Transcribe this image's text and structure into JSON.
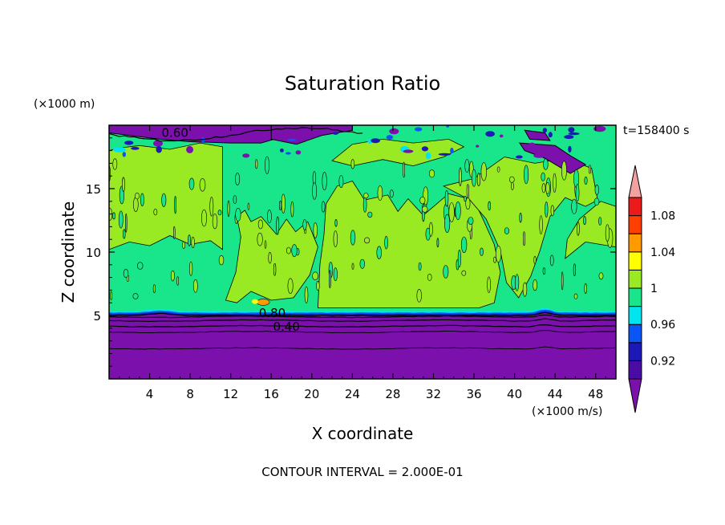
{
  "chart_data": {
    "type": "heatmap",
    "title": "Saturation Ratio",
    "xlabel": "X coordinate",
    "ylabel": "Z coordinate",
    "x_unit": "(×1000 m/s)",
    "y_unit": "(×1000 m)",
    "time_label": "t=158400 s",
    "footer": "CONTOUR INTERVAL = 2.000E-01",
    "xlim": [
      0,
      50
    ],
    "ylim": [
      0,
      20
    ],
    "x_ticks": [
      4,
      8,
      12,
      16,
      20,
      24,
      28,
      32,
      36,
      40,
      44,
      48
    ],
    "y_ticks": [
      5,
      10,
      15
    ],
    "contour_labels": [
      {
        "text": "0.60",
        "x": 6.5,
        "y": 19.4
      },
      {
        "text": "0.80",
        "x": 16.1,
        "y": 5.2
      },
      {
        "text": "0.40",
        "x": 17.5,
        "y": 4.1
      }
    ],
    "colorbar": {
      "levels": [
        0.92,
        0.94,
        0.96,
        0.98,
        1.0,
        1.02,
        1.04,
        1.06,
        1.08,
        1.1
      ],
      "labels": [
        "0.92",
        "0.96",
        "1",
        "1.04",
        "1.08"
      ],
      "label_values": [
        0.92,
        0.96,
        1.0,
        1.04,
        1.08
      ],
      "colors": [
        "#4b0ca6",
        "#1c19b8",
        "#0a55f5",
        "#00e5f0",
        "#19e68a",
        "#9aea23",
        "#ffff00",
        "#ff9900",
        "#ff3f00",
        "#ec1a1a"
      ],
      "under_color": "#7b10ad",
      "over_color": "#f2a0a0"
    },
    "colors": {
      "purple": "#7b10ad",
      "teal": "#19e68a",
      "lime": "#9aea23",
      "blue": "#0a55f5",
      "cyan": "#00e5f0",
      "dark_blue": "#1c19b8",
      "yellow": "#ffff00",
      "orange": "#ff9900"
    }
  }
}
